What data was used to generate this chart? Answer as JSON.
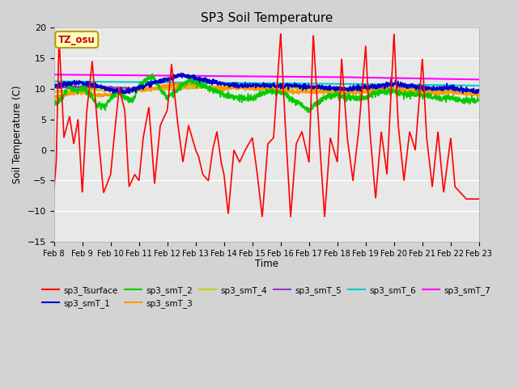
{
  "title": "SP3 Soil Temperature",
  "ylabel": "Soil Temperature (C)",
  "xlabel": "Time",
  "ylim": [
    -15,
    20
  ],
  "yticks": [
    -15,
    -10,
    -5,
    0,
    5,
    10,
    15,
    20
  ],
  "xtick_labels": [
    "Feb 8",
    "Feb 9",
    "Feb 10",
    "Feb 11",
    "Feb 12",
    "Feb 13",
    "Feb 14",
    "Feb 15",
    "Feb 16",
    "Feb 17",
    "Feb 18",
    "Feb 19",
    "Feb 20",
    "Feb 21",
    "Feb 22",
    "Feb 23"
  ],
  "series_colors": {
    "sp3_Tsurface": "#ff0000",
    "sp3_smT_1": "#0000cc",
    "sp3_smT_2": "#00cc00",
    "sp3_smT_3": "#ff9900",
    "sp3_smT_4": "#cccc00",
    "sp3_smT_5": "#9933cc",
    "sp3_smT_6": "#00cccc",
    "sp3_smT_7": "#ff00ff"
  },
  "annotation_text": "TZ_osu",
  "fig_facecolor": "#d3d3d3",
  "ax_facecolor": "#e8e8e8",
  "grid_color": "#ffffff",
  "surf_t": [
    0,
    0.08,
    0.18,
    0.35,
    0.55,
    0.7,
    0.85,
    1.0,
    1.15,
    1.35,
    1.55,
    1.75,
    2.0,
    2.1,
    2.3,
    2.5,
    2.65,
    2.85,
    3.0,
    3.15,
    3.35,
    3.55,
    3.75,
    4.0,
    4.15,
    4.35,
    4.55,
    4.75,
    5.0,
    5.1,
    5.25,
    5.45,
    5.6,
    5.75,
    5.9,
    6.0,
    6.15,
    6.35,
    6.55,
    6.75,
    7.0,
    7.15,
    7.35,
    7.55,
    7.75,
    8.0,
    8.15,
    8.35,
    8.55,
    8.75,
    9.0,
    9.15,
    9.35,
    9.55,
    9.75,
    10.0,
    10.15,
    10.35,
    10.55,
    10.75,
    11.0,
    11.15,
    11.35,
    11.55,
    11.75,
    12.0,
    12.15,
    12.35,
    12.55,
    12.75,
    13.0,
    13.15,
    13.35,
    13.55,
    13.75,
    14.0,
    14.15,
    14.35,
    14.55,
    14.75,
    15.0
  ],
  "surf_v": [
    -6.5,
    -2,
    18.5,
    2,
    5.5,
    1,
    5,
    -7,
    6,
    14.5,
    3,
    -7,
    -4,
    1,
    10,
    6.5,
    -6,
    -4,
    -5,
    2,
    7,
    -5.5,
    4,
    6.5,
    14,
    5,
    -2,
    4,
    0,
    -1,
    -4,
    -5,
    0,
    3,
    -2,
    -4,
    -10.5,
    0,
    -2,
    0,
    2,
    -3,
    -11,
    1,
    2,
    19,
    5,
    -11,
    1,
    3,
    -2,
    19,
    3,
    -11,
    2,
    -2,
    15,
    2,
    -5,
    3,
    17,
    3,
    -8,
    3,
    -4,
    19,
    4,
    -5,
    3,
    0,
    15,
    2,
    -6,
    3,
    -7,
    2,
    -6,
    -7,
    -8,
    -8,
    -8
  ],
  "smT1_t": [
    0,
    0.5,
    1.0,
    1.5,
    2.0,
    2.5,
    3.0,
    3.5,
    4.0,
    4.5,
    5.0,
    5.5,
    6.0,
    6.5,
    7.0,
    7.5,
    8.0,
    8.5,
    9.0,
    9.5,
    10.0,
    10.5,
    11.0,
    11.5,
    12.0,
    12.5,
    13.0,
    13.5,
    14.0,
    14.5,
    15.0
  ],
  "smT1_v": [
    10.5,
    10.8,
    11.0,
    10.5,
    9.8,
    9.5,
    10.2,
    11.0,
    11.5,
    12.2,
    11.8,
    11.2,
    10.8,
    10.5,
    10.5,
    10.5,
    10.5,
    10.5,
    10.3,
    10.2,
    10.0,
    10.0,
    10.2,
    10.5,
    10.8,
    10.5,
    10.2,
    10.0,
    10.2,
    9.8,
    9.5
  ],
  "smT2_t": [
    0,
    0.3,
    0.5,
    0.8,
    1.0,
    1.3,
    1.5,
    1.8,
    2.0,
    2.3,
    2.5,
    2.8,
    3.0,
    3.3,
    3.5,
    3.8,
    4.0,
    4.3,
    4.5,
    4.8,
    5.0,
    5.3,
    5.5,
    5.8,
    6.0,
    6.5,
    7.0,
    7.5,
    8.0,
    8.5,
    9.0,
    9.5,
    10.0,
    10.5,
    11.0,
    11.5,
    12.0,
    12.5,
    13.0,
    13.5,
    14.0,
    14.5,
    15.0
  ],
  "smT2_v": [
    7.5,
    8.5,
    10.5,
    9.5,
    10.2,
    9.0,
    7.5,
    7.0,
    8.5,
    9.5,
    8.5,
    8.0,
    10.5,
    11.5,
    12.0,
    9.5,
    8.5,
    9.5,
    10.5,
    11.5,
    11.0,
    10.5,
    10.0,
    9.5,
    9.0,
    8.5,
    8.5,
    9.5,
    9.5,
    8.0,
    6.5,
    8.5,
    9.0,
    8.5,
    8.5,
    9.5,
    9.5,
    9.0,
    9.0,
    8.5,
    8.5,
    8.0,
    8.0
  ],
  "smT3_t": [
    0,
    0.5,
    1.0,
    1.5,
    2.0,
    2.5,
    3.0,
    3.5,
    4.0,
    4.5,
    5.0,
    5.5,
    6.0,
    6.5,
    7.0,
    7.5,
    8.0,
    8.5,
    9.0,
    9.5,
    10.0,
    10.5,
    11.0,
    11.5,
    12.0,
    12.5,
    13.0,
    13.5,
    14.0,
    14.5,
    15.0
  ],
  "smT3_v": [
    8.5,
    9.2,
    9.5,
    9.0,
    9.0,
    9.5,
    9.8,
    10.0,
    10.5,
    10.8,
    10.5,
    10.2,
    10.0,
    10.2,
    10.0,
    10.0,
    9.8,
    9.5,
    9.5,
    9.5,
    9.5,
    9.3,
    9.5,
    9.8,
    10.0,
    9.5,
    9.5,
    9.2,
    9.5,
    9.2,
    9.0
  ],
  "smT4_t": [
    0,
    1,
    2,
    3,
    4,
    5,
    6,
    7,
    8,
    9,
    10,
    11,
    12,
    13,
    14,
    15
  ],
  "smT4_v": [
    9.5,
    9.8,
    9.8,
    9.8,
    10.0,
    10.2,
    10.3,
    10.3,
    10.2,
    10.0,
    9.8,
    9.8,
    9.8,
    9.8,
    9.5,
    9.3
  ],
  "smT5_t": [
    0,
    1,
    2,
    3,
    4,
    5,
    6,
    7,
    8,
    9,
    10,
    11,
    12,
    13,
    14,
    15
  ],
  "smT5_v": [
    10.2,
    10.3,
    10.2,
    10.0,
    10.0,
    10.2,
    10.3,
    10.3,
    10.2,
    10.0,
    10.0,
    10.0,
    10.0,
    10.0,
    9.8,
    9.7
  ],
  "smT6_t": [
    0,
    5,
    10,
    15
  ],
  "smT6_v": [
    11.2,
    11.0,
    10.8,
    10.5
  ],
  "smT7_t": [
    0,
    5,
    10,
    15
  ],
  "smT7_v": [
    12.3,
    12.1,
    11.9,
    11.5
  ]
}
